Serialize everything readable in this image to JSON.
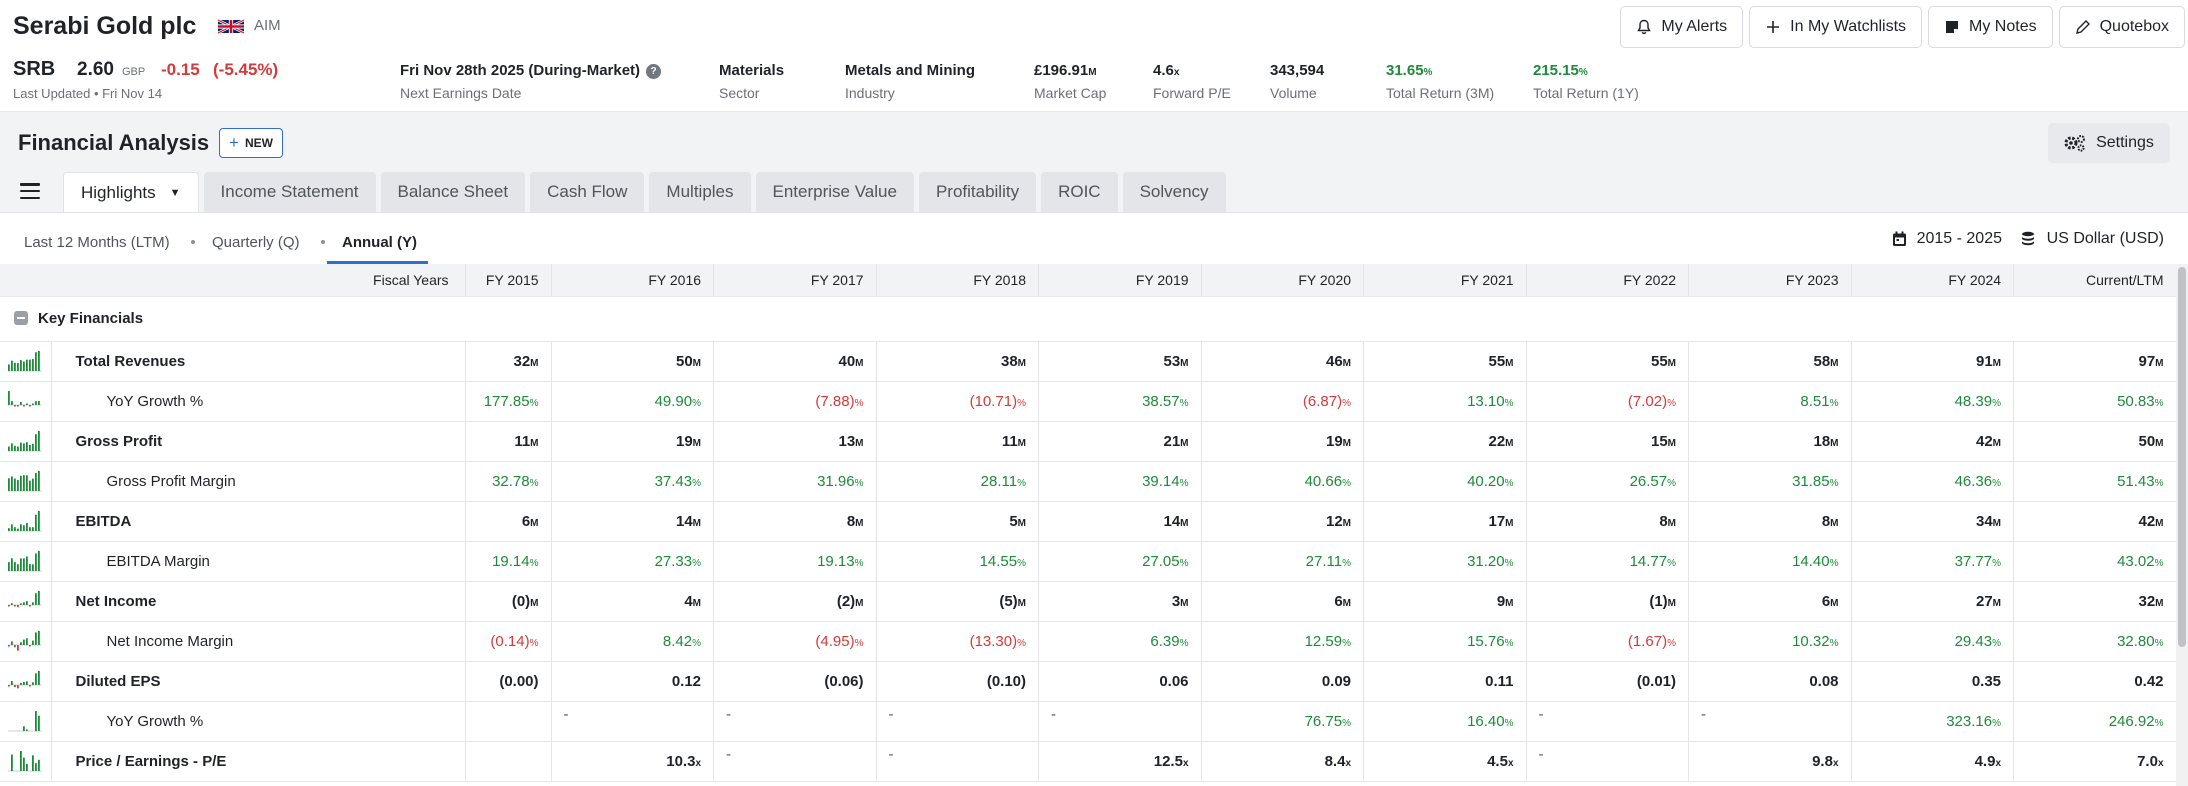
{
  "company": {
    "name": "Serabi Gold plc",
    "exchange": "AIM",
    "flag_icon": "uk-flag-icon",
    "ticker": "SRB",
    "price": "2.60",
    "currency": "GBP",
    "change": "-0.15",
    "change_pct": "(-5.45%)",
    "last_updated": "Last Updated • Fri Nov 14"
  },
  "header_actions": [
    {
      "label": "My Alerts",
      "icon": "bell-icon"
    },
    {
      "label": "In My Watchlists",
      "icon": "plus-icon"
    },
    {
      "label": "My Notes",
      "icon": "note-icon"
    },
    {
      "label": "Quotebox",
      "icon": "pencil-icon"
    }
  ],
  "stats": {
    "earnings": {
      "value": "Fri Nov 28th 2025 (During-Market)",
      "label": "Next Earnings Date"
    },
    "sector": {
      "value": "Materials",
      "label": "Sector"
    },
    "industry": {
      "value": "Metals and Mining",
      "label": "Industry"
    },
    "market_cap": {
      "value": "£196.91",
      "unit": "M",
      "label": "Market Cap"
    },
    "forward_pe": {
      "value": "4.6",
      "unit": "x",
      "label": "Forward P/E"
    },
    "volume": {
      "value": "343,594",
      "label": "Volume"
    },
    "tr_3m": {
      "value": "31.65",
      "unit": "%",
      "label": "Total Return (3M)"
    },
    "tr_1y": {
      "value": "215.15",
      "unit": "%",
      "label": "Total Return (1Y)"
    }
  },
  "analysis": {
    "title": "Financial Analysis",
    "new_label": "NEW",
    "settings_label": "Settings",
    "tabs": [
      "Highlights",
      "Income Statement",
      "Balance Sheet",
      "Cash Flow",
      "Multiples",
      "Enterprise Value",
      "Profitability",
      "ROIC",
      "Solvency"
    ],
    "periods": [
      "Last 12 Months (LTM)",
      "Quarterly (Q)",
      "Annual (Y)"
    ],
    "active_period": "Annual (Y)",
    "range": "2015 - 2025",
    "currency": "US Dollar (USD)"
  },
  "table": {
    "first_header": "Fiscal Years",
    "columns": [
      "FY 2015",
      "FY 2016",
      "FY 2017",
      "FY 2018",
      "FY 2019",
      "FY 2020",
      "FY 2021",
      "FY 2022",
      "FY 2023",
      "FY 2024",
      "Current/LTM"
    ],
    "section": "Key Financials",
    "rows": [
      {
        "label": "Total Revenues",
        "sub": false,
        "bold": true,
        "unit": "M",
        "cells": [
          "32",
          "50",
          "40",
          "38",
          "53",
          "46",
          "55",
          "55",
          "58",
          "91",
          "97"
        ],
        "spark": [
          32,
          50,
          40,
          38,
          53,
          46,
          55,
          55,
          58,
          91,
          97
        ]
      },
      {
        "label": "YoY Growth %",
        "sub": true,
        "unit": "%",
        "cells": [
          "177.85",
          "49.90",
          "(7.88)",
          "(10.71)",
          "38.57",
          "(6.87)",
          "13.10",
          "(7.02)",
          "8.51",
          "48.39",
          "50.83"
        ],
        "spark": [
          177.85,
          49.9,
          -7.88,
          -10.71,
          38.57,
          -6.87,
          13.1,
          -7.02,
          8.51,
          48.39,
          50.83
        ]
      },
      {
        "label": "Gross Profit",
        "sub": false,
        "bold": true,
        "unit": "M",
        "cells": [
          "11",
          "19",
          "13",
          "11",
          "21",
          "19",
          "22",
          "15",
          "18",
          "42",
          "50"
        ],
        "spark": [
          11,
          19,
          13,
          11,
          21,
          19,
          22,
          15,
          18,
          42,
          50
        ]
      },
      {
        "label": "Gross Profit Margin",
        "sub": true,
        "unit": "%",
        "cells": [
          "32.78",
          "37.43",
          "31.96",
          "28.11",
          "39.14",
          "40.66",
          "40.20",
          "26.57",
          "31.85",
          "46.36",
          "51.43"
        ],
        "spark": [
          32.78,
          37.43,
          31.96,
          28.11,
          39.14,
          40.66,
          40.2,
          26.57,
          31.85,
          46.36,
          51.43
        ]
      },
      {
        "label": "EBITDA",
        "sub": false,
        "bold": true,
        "unit": "M",
        "cells": [
          "6",
          "14",
          "8",
          "5",
          "14",
          "12",
          "17",
          "8",
          "8",
          "34",
          "42"
        ],
        "spark": [
          6,
          14,
          8,
          5,
          14,
          12,
          17,
          8,
          8,
          34,
          42
        ]
      },
      {
        "label": "EBITDA Margin",
        "sub": true,
        "unit": "%",
        "cells": [
          "19.14",
          "27.33",
          "19.13",
          "14.55",
          "27.05",
          "27.11",
          "31.20",
          "14.77",
          "14.40",
          "37.77",
          "43.02"
        ],
        "spark": [
          19.14,
          27.33,
          19.13,
          14.55,
          27.05,
          27.11,
          31.2,
          14.77,
          14.4,
          37.77,
          43.02
        ]
      },
      {
        "label": "Net Income",
        "sub": false,
        "bold": true,
        "unit": "M",
        "cells": [
          "(0)",
          "4",
          "(2)",
          "(5)",
          "3",
          "6",
          "9",
          "(1)",
          "6",
          "27",
          "32"
        ],
        "spark": [
          -0.3,
          4,
          -2,
          -5,
          3,
          6,
          9,
          -1,
          6,
          27,
          32
        ]
      },
      {
        "label": "Net Income Margin",
        "sub": true,
        "unit": "%",
        "cells": [
          "(0.14)",
          "8.42",
          "(4.95)",
          "(13.30)",
          "6.39",
          "12.59",
          "15.76",
          "(1.67)",
          "10.32",
          "29.43",
          "32.80"
        ],
        "spark": [
          -0.14,
          8.42,
          -4.95,
          -13.3,
          6.39,
          12.59,
          15.76,
          -1.67,
          10.32,
          29.43,
          32.8
        ]
      },
      {
        "label": "Diluted EPS",
        "sub": false,
        "bold": true,
        "unit": "",
        "cells": [
          "(0.00)",
          "0.12",
          "(0.06)",
          "(0.10)",
          "0.06",
          "0.09",
          "0.11",
          "(0.01)",
          "0.08",
          "0.35",
          "0.42"
        ],
        "spark": [
          -0.001,
          0.12,
          -0.06,
          -0.1,
          0.06,
          0.09,
          0.11,
          -0.01,
          0.08,
          0.35,
          0.42
        ]
      },
      {
        "label": "YoY Growth %",
        "sub": true,
        "unit": "%",
        "cells": [
          "",
          "-",
          "-",
          "-",
          "-",
          "76.75",
          "16.40",
          "-",
          "-",
          "323.16",
          "246.92"
        ],
        "spark": [
          0,
          0,
          0,
          0,
          0,
          76.75,
          16.4,
          0,
          0,
          323.16,
          246.92
        ]
      },
      {
        "label": "Price / Earnings - P/E",
        "sub": false,
        "bold": true,
        "unit": "x",
        "cells": [
          "",
          "10.3",
          "-",
          "-",
          "12.5",
          "8.4",
          "4.5",
          "-",
          "9.8",
          "4.9",
          "7.0"
        ],
        "spark": [
          0,
          10.3,
          0,
          0,
          12.5,
          8.4,
          4.5,
          0,
          9.8,
          4.9,
          7.0
        ]
      }
    ]
  },
  "colors": {
    "positive": "#1e8a3a",
    "negative": "#d13b3b",
    "accent": "#2f6fd1"
  }
}
